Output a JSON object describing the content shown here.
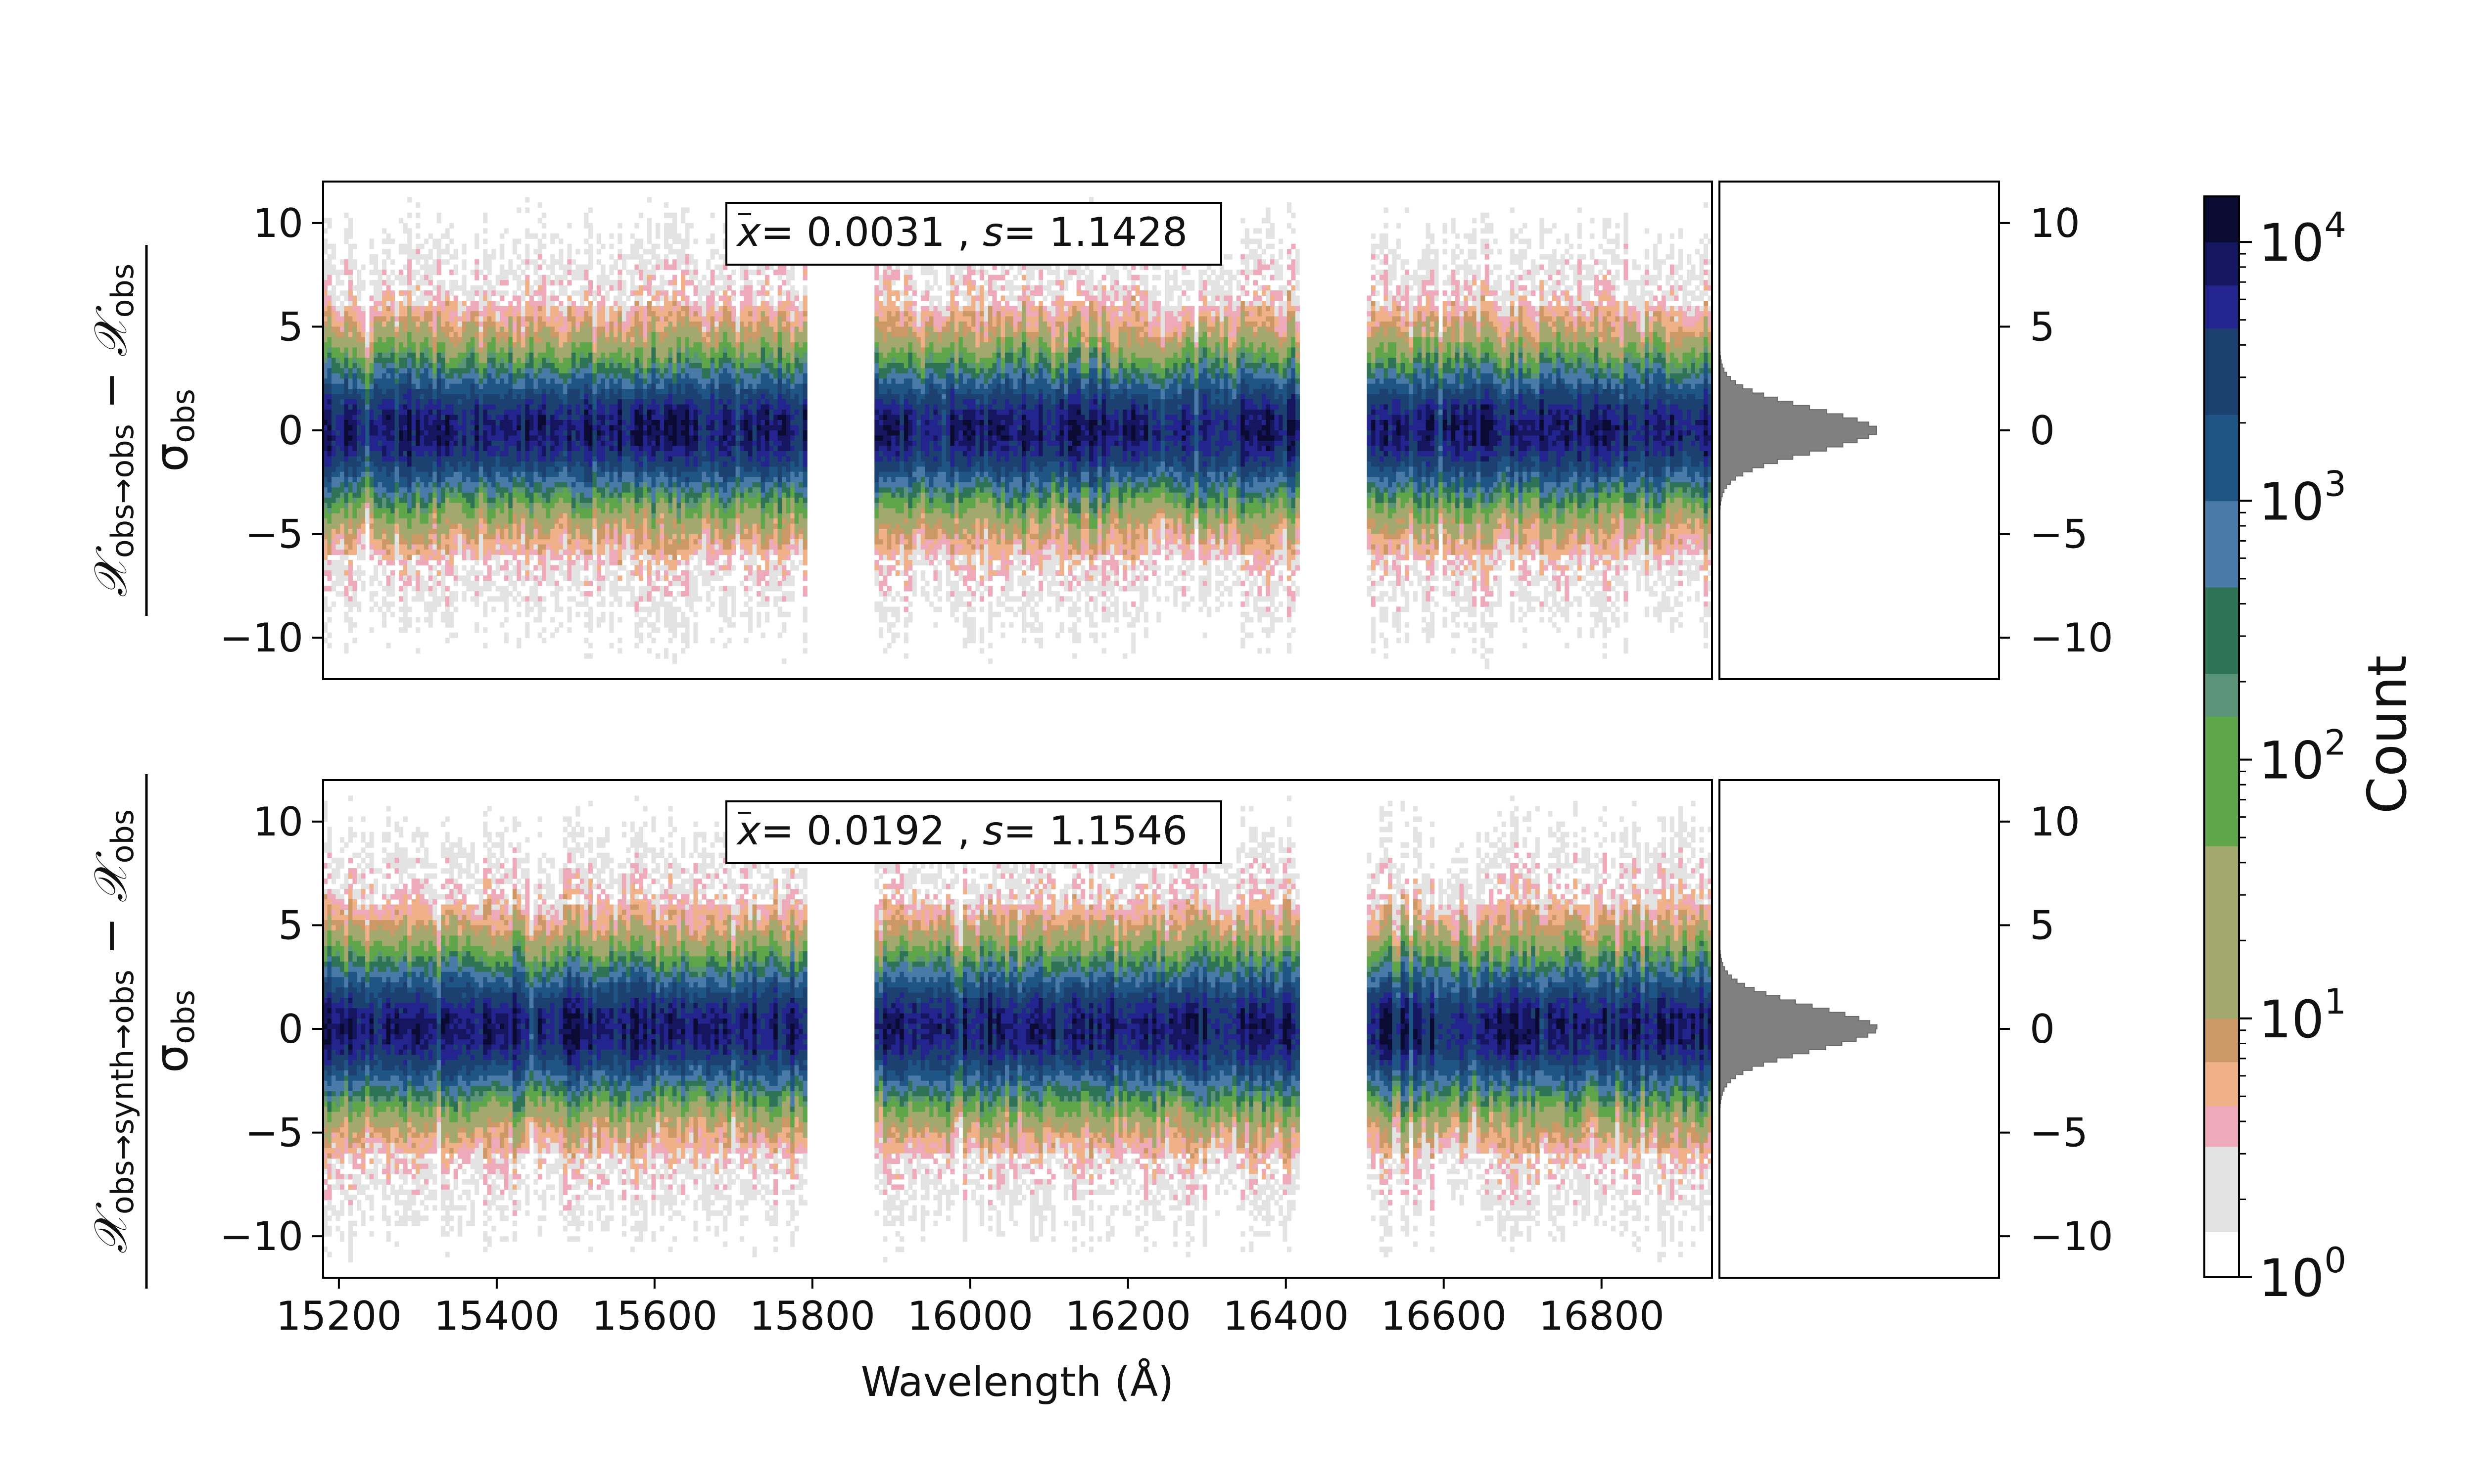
{
  "chart_data": [
    {
      "type": "heatmap",
      "panel": "top",
      "ylabel_numerator": "𝒳obs→obs − 𝒳obs",
      "ylabel_denominator": "σobs",
      "annotation": {
        "mean": "0.0031",
        "std": "1.1428"
      },
      "x_range": [
        15180,
        16940
      ],
      "y_range": [
        -12,
        12
      ],
      "gaps": [
        [
          15792,
          15880
        ],
        [
          16418,
          16500
        ]
      ],
      "yticks": [
        10,
        5,
        0,
        -5,
        -10
      ],
      "marginal_histogram": {
        "center": 0.0,
        "std": 1.1428,
        "peak_fraction": 1.0
      }
    },
    {
      "type": "heatmap",
      "panel": "bottom",
      "ylabel_numerator": "𝒳obs→synth→obs − 𝒳obs",
      "ylabel_denominator": "σobs",
      "annotation": {
        "mean": "0.0192",
        "std": "1.1546"
      },
      "x_range": [
        15180,
        16940
      ],
      "y_range": [
        -12,
        12
      ],
      "gaps": [
        [
          15792,
          15880
        ],
        [
          16418,
          16500
        ]
      ],
      "yticks": [
        10,
        5,
        0,
        -5,
        -10
      ],
      "xticks": [
        15200,
        15400,
        15600,
        15800,
        16000,
        16200,
        16400,
        16600,
        16800
      ],
      "xlabel": "Wavelength (Å)",
      "marginal_histogram": {
        "center": 0.02,
        "std": 1.1546,
        "peak_fraction": 1.0
      }
    }
  ],
  "ytick_labels": [
    "10",
    "5",
    "0",
    "−5",
    "−10"
  ],
  "xtick_labels": [
    "15200",
    "15400",
    "15600",
    "15800",
    "16000",
    "16200",
    "16400",
    "16600",
    "16800"
  ],
  "colorbar": {
    "label": "Count",
    "scale": "log",
    "range": [
      1,
      15000
    ],
    "tick_values": [
      1,
      10,
      100,
      1000,
      10000
    ],
    "tick_bases": [
      "10",
      "10",
      "10",
      "10",
      "10"
    ],
    "tick_exponents": [
      "0",
      "1",
      "2",
      "3",
      "4"
    ],
    "levels": [
      1,
      1.5,
      2.2,
      3.2,
      4.6,
      6.8,
      10,
      14.7,
      21.5,
      31.6,
      46.4,
      68.1,
      100,
      147,
      215,
      316,
      464,
      681,
      1000,
      1468,
      2154,
      3162,
      4642,
      6813,
      10000,
      15000
    ],
    "colors": [
      "#ffffff",
      "#e3e3e3",
      "#e3e3e3",
      "#eeaabb",
      "#f0b088",
      "#cc9966",
      "#a2a86e",
      "#a2a86e",
      "#a2a86e",
      "#a2a86e",
      "#5fa64a",
      "#5fa64a",
      "#5fa64a",
      "#5b9478",
      "#2f7356",
      "#2f7356",
      "#4a7ba8",
      "#4a7ba8",
      "#1f5585",
      "#1f5585",
      "#1c4170",
      "#1c4170",
      "#24248f",
      "#161660",
      "#0a0a33"
    ]
  }
}
